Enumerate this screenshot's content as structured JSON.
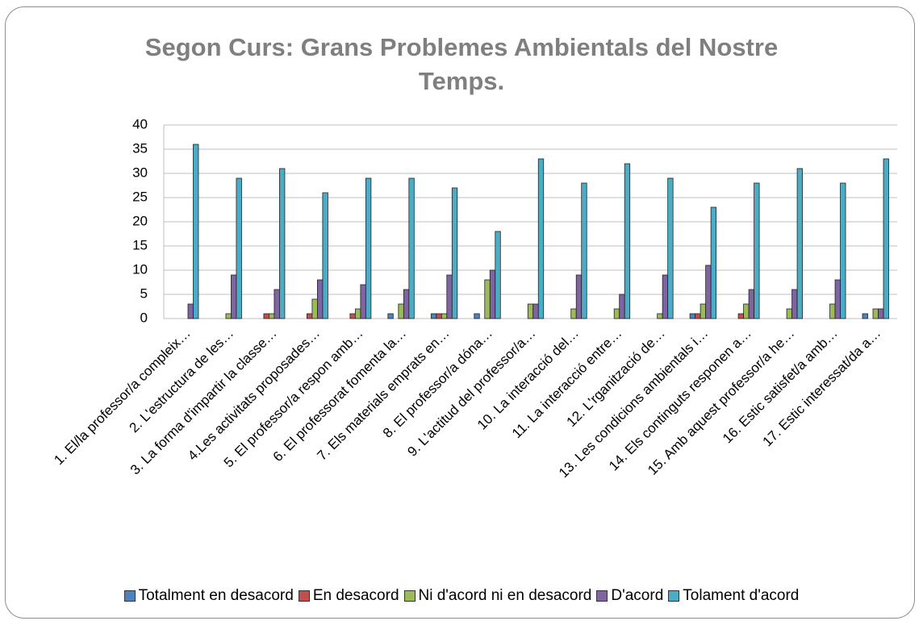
{
  "chart_data": {
    "type": "bar",
    "title": "Segon Curs: Grans Problemes Ambientals del Nostre Temps.",
    "categories": [
      "1. El/la professor/a compleix…",
      "2. L'estructura de les…",
      "3. La forma d'impartir la classe…",
      "4.Les activitats proposades…",
      "5. El professor/a respon amb…",
      "6. El professorat fomenta la…",
      "7. Els materials emprats en…",
      "8. El professor/a dóna…",
      "9. L'actitud del professor/a…",
      "10. La interacció del…",
      "11. La interacció entre…",
      "12. L'rganització de…",
      "13. Les condicions ambientals i…",
      "14. Els continguts responen a…",
      "15. Amb aquest professor/a he…",
      "16. Estic satisfet/a amb…",
      "17. Estic interessat/da a…"
    ],
    "series": [
      {
        "name": "Totalment en desacord",
        "color": "#4f81bd",
        "values": [
          0,
          0,
          0,
          0,
          0,
          1,
          1,
          1,
          0,
          0,
          0,
          0,
          1,
          0,
          0,
          0,
          1
        ]
      },
      {
        "name": "En desacord",
        "color": "#c0504d",
        "values": [
          0,
          0,
          1,
          1,
          1,
          0,
          1,
          0,
          0,
          0,
          0,
          0,
          1,
          1,
          0,
          0,
          0
        ]
      },
      {
        "name": "Ni d'acord ni en desacord",
        "color": "#9bbb59",
        "values": [
          0,
          1,
          1,
          4,
          2,
          3,
          1,
          8,
          3,
          2,
          2,
          1,
          3,
          3,
          2,
          3,
          2
        ]
      },
      {
        "name": "D'acord",
        "color": "#8064a2",
        "values": [
          3,
          9,
          6,
          8,
          7,
          6,
          9,
          10,
          3,
          9,
          5,
          9,
          11,
          6,
          6,
          8,
          2
        ]
      },
      {
        "name": "Tolament d'acord",
        "color": "#4bacc6",
        "values": [
          36,
          29,
          31,
          26,
          29,
          29,
          27,
          18,
          33,
          28,
          32,
          29,
          23,
          28,
          31,
          28,
          33
        ]
      }
    ],
    "ylim": [
      0,
      40
    ],
    "yticks": [
      0,
      5,
      10,
      15,
      20,
      25,
      30,
      35,
      40
    ],
    "grid": true,
    "legend": "bottom"
  }
}
